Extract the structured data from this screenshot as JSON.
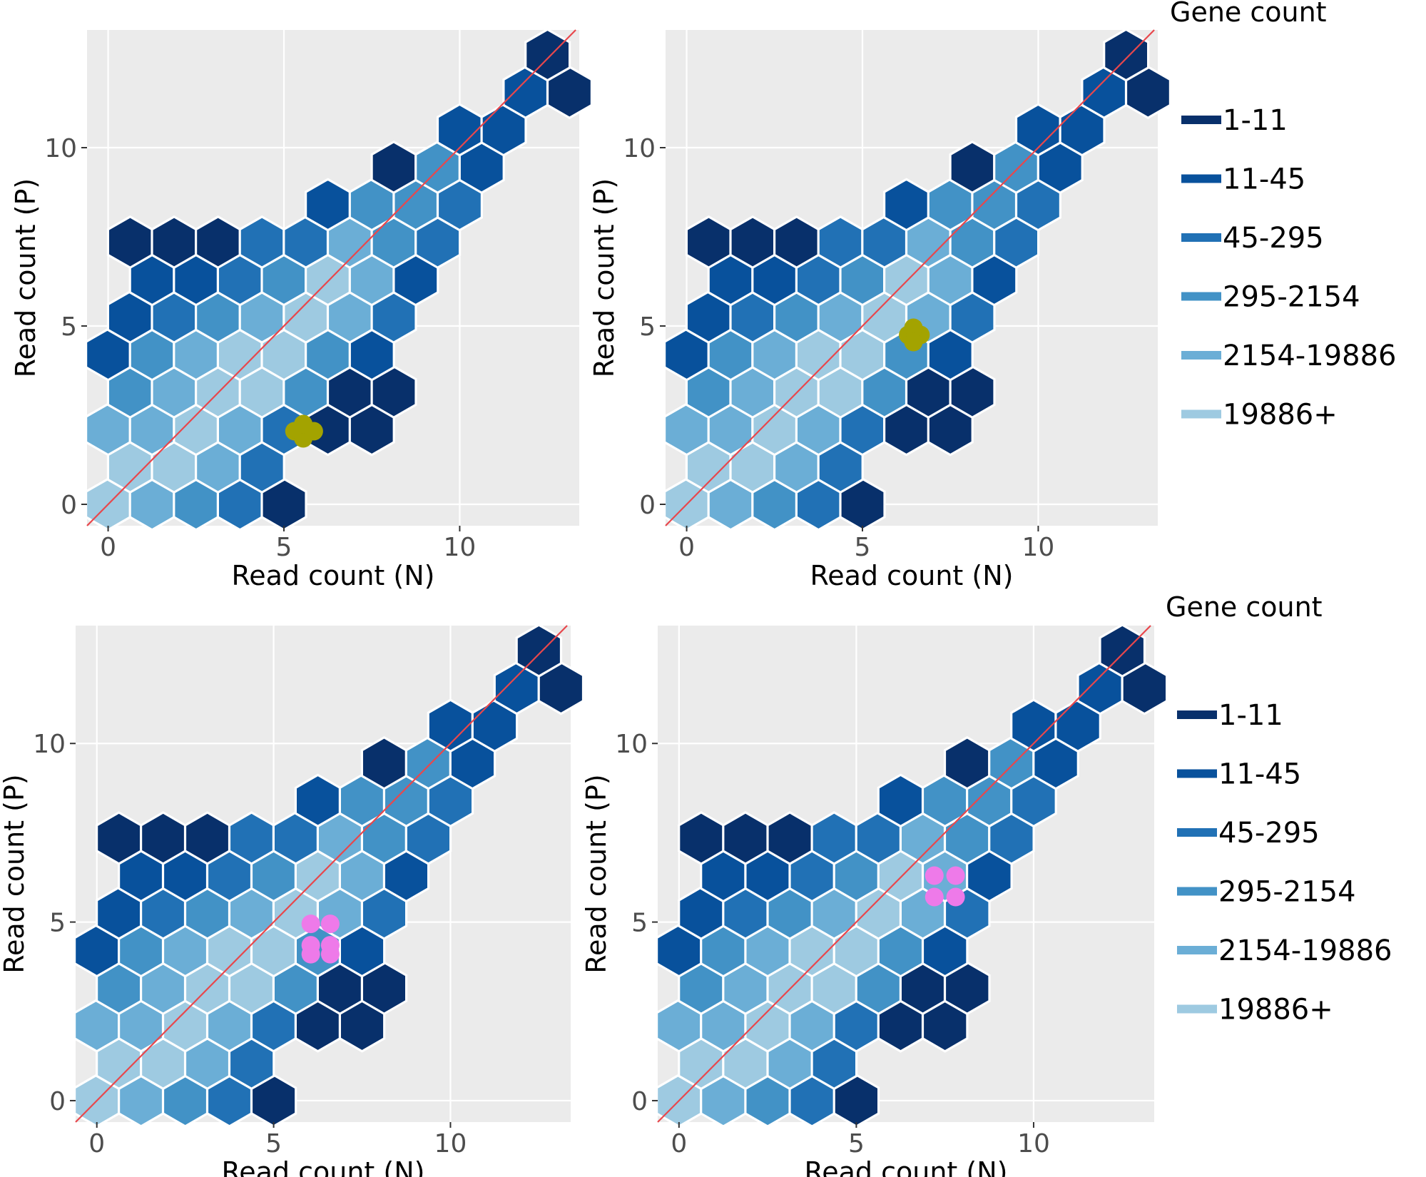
{
  "legend": {
    "title": "Gene count",
    "items": [
      {
        "label": "1-11",
        "color": "#08306b"
      },
      {
        "label": "11-45",
        "color": "#08519c"
      },
      {
        "label": "45-295",
        "color": "#2171b5"
      },
      {
        "label": "295-2154",
        "color": "#4292c6"
      },
      {
        "label": "2154-19886",
        "color": "#6baed6"
      },
      {
        "label": "19886+",
        "color": "#9ecae1"
      }
    ]
  },
  "chart_data": [
    {
      "type": "hexbin",
      "xlabel": "Read count (N)",
      "ylabel": "Read count (P)",
      "xlim": [
        -0.6,
        13.4
      ],
      "ylim": [
        -0.6,
        13.3
      ],
      "xticks": [
        0,
        5,
        10
      ],
      "yticks": [
        0,
        5,
        10
      ],
      "grid": true,
      "reference_line": {
        "type": "y=x",
        "color": "#e8474c"
      },
      "highlight": {
        "color": "#a3a300",
        "points": [
          [
            5.3,
            2.05
          ],
          [
            5.85,
            2.05
          ],
          [
            5.55,
            1.85
          ],
          [
            5.55,
            2.25
          ]
        ]
      }
    },
    {
      "type": "hexbin",
      "xlabel": "Read count (N)",
      "ylabel": "Read count (P)",
      "xlim": [
        -0.6,
        13.4
      ],
      "ylim": [
        -0.6,
        13.3
      ],
      "xticks": [
        0,
        5,
        10
      ],
      "yticks": [
        0,
        5,
        10
      ],
      "grid": true,
      "reference_line": {
        "type": "y=x",
        "color": "#e8474c"
      },
      "highlight": {
        "color": "#a3a300",
        "points": [
          [
            6.3,
            4.75
          ],
          [
            6.65,
            4.75
          ],
          [
            6.45,
            4.95
          ],
          [
            6.45,
            4.55
          ]
        ]
      }
    },
    {
      "type": "hexbin",
      "xlabel": "Read count (N)",
      "ylabel": "Read count (P)",
      "xlim": [
        -0.6,
        13.4
      ],
      "ylim": [
        -0.6,
        13.3
      ],
      "xticks": [
        0,
        5,
        10
      ],
      "yticks": [
        0,
        5,
        10
      ],
      "grid": true,
      "reference_line": {
        "type": "y=x",
        "color": "#e8474c"
      },
      "highlight": {
        "color": "#ee7ae9",
        "points": [
          [
            6.05,
            4.95
          ],
          [
            6.6,
            4.95
          ],
          [
            6.05,
            4.35
          ],
          [
            6.6,
            4.35
          ],
          [
            6.05,
            4.1
          ],
          [
            6.6,
            4.1
          ]
        ]
      }
    },
    {
      "type": "hexbin",
      "xlabel": "Read count (N)",
      "ylabel": "Read count (P)",
      "xlim": [
        -0.6,
        13.4
      ],
      "ylim": [
        -0.6,
        13.3
      ],
      "xticks": [
        0,
        5,
        10
      ],
      "yticks": [
        0,
        5,
        10
      ],
      "grid": true,
      "reference_line": {
        "type": "y=x",
        "color": "#e8474c"
      },
      "highlight": {
        "color": "#ee7ae9",
        "points": [
          [
            7.2,
            6.3
          ],
          [
            7.8,
            6.3
          ],
          [
            7.2,
            5.7
          ],
          [
            7.8,
            5.7
          ]
        ]
      }
    }
  ],
  "hex_bins": {
    "centers": [
      [
        0,
        0,
        5
      ],
      [
        1.25,
        0,
        4
      ],
      [
        2.5,
        0,
        3
      ],
      [
        3.75,
        0,
        2
      ],
      [
        5,
        0,
        0
      ],
      [
        0.625,
        1.05,
        5
      ],
      [
        1.875,
        1.05,
        5
      ],
      [
        3.125,
        1.05,
        4
      ],
      [
        4.375,
        1.05,
        2
      ],
      [
        0,
        2.1,
        4
      ],
      [
        1.25,
        2.1,
        4
      ],
      [
        2.5,
        2.1,
        5
      ],
      [
        3.75,
        2.1,
        4
      ],
      [
        5,
        2.1,
        2
      ],
      [
        6.25,
        2.1,
        0
      ],
      [
        7.5,
        2.1,
        0
      ],
      [
        0.625,
        3.15,
        3
      ],
      [
        1.875,
        3.15,
        4
      ],
      [
        3.125,
        3.15,
        5
      ],
      [
        4.375,
        3.15,
        5
      ],
      [
        5.625,
        3.15,
        3
      ],
      [
        6.875,
        3.15,
        0
      ],
      [
        8.125,
        3.15,
        0
      ],
      [
        0,
        4.2,
        1
      ],
      [
        1.25,
        4.2,
        3
      ],
      [
        2.5,
        4.2,
        4
      ],
      [
        3.75,
        4.2,
        5
      ],
      [
        5,
        4.2,
        5
      ],
      [
        6.25,
        4.2,
        3
      ],
      [
        7.5,
        4.2,
        1
      ],
      [
        0.625,
        5.25,
        1
      ],
      [
        1.875,
        5.25,
        2
      ],
      [
        3.125,
        5.25,
        3
      ],
      [
        4.375,
        5.25,
        4
      ],
      [
        5.625,
        5.25,
        5
      ],
      [
        6.875,
        5.25,
        4
      ],
      [
        8.125,
        5.25,
        2
      ],
      [
        1.25,
        6.3,
        1
      ],
      [
        2.5,
        6.3,
        1
      ],
      [
        3.75,
        6.3,
        2
      ],
      [
        5,
        6.3,
        3
      ],
      [
        6.25,
        6.3,
        5
      ],
      [
        7.5,
        6.3,
        4
      ],
      [
        8.75,
        6.3,
        1
      ],
      [
        0.625,
        7.35,
        0
      ],
      [
        1.875,
        7.35,
        0
      ],
      [
        3.125,
        7.35,
        0
      ],
      [
        4.375,
        7.35,
        2
      ],
      [
        5.625,
        7.35,
        2
      ],
      [
        6.875,
        7.35,
        4
      ],
      [
        8.125,
        7.35,
        3
      ],
      [
        9.375,
        7.35,
        2
      ],
      [
        6.25,
        8.4,
        1
      ],
      [
        7.5,
        8.4,
        3
      ],
      [
        8.75,
        8.4,
        3
      ],
      [
        10,
        8.4,
        2
      ],
      [
        8.125,
        9.45,
        0
      ],
      [
        9.375,
        9.45,
        3
      ],
      [
        10.625,
        9.45,
        1
      ],
      [
        10,
        10.5,
        1
      ],
      [
        11.25,
        10.5,
        1
      ],
      [
        11.875,
        11.55,
        1
      ],
      [
        13.125,
        11.55,
        0
      ],
      [
        12.5,
        12.6,
        0
      ]
    ]
  }
}
